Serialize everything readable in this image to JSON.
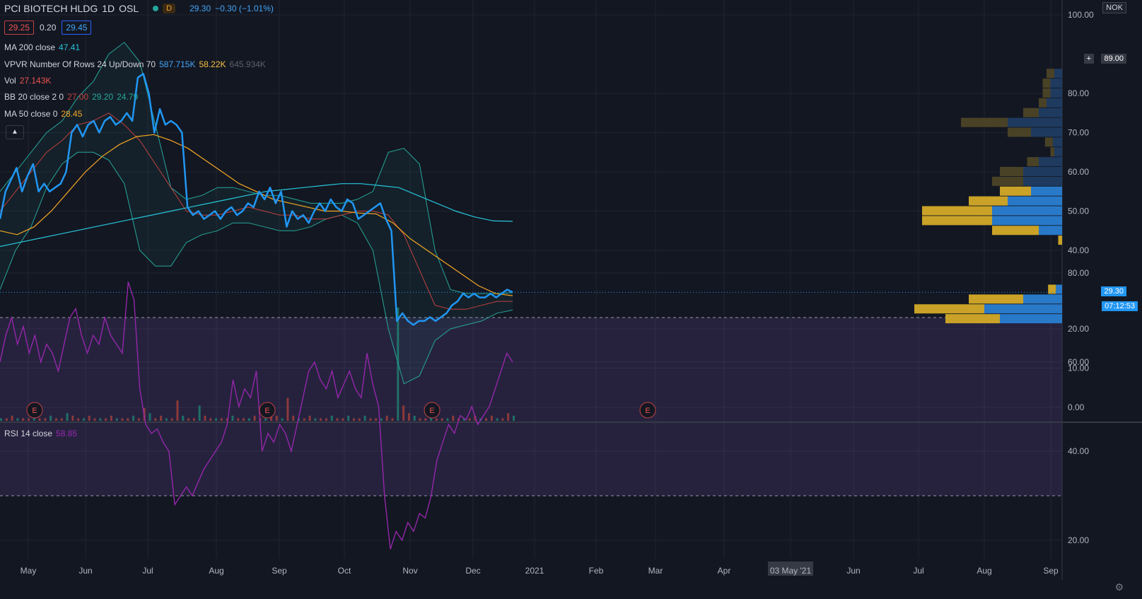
{
  "header": {
    "symbol": "PCI BIOTECH HLDG",
    "interval": "1D",
    "exchange": "OSL",
    "market_status_badge": "D",
    "last_price": "29.30",
    "change": "−0.30 (−1.01%)"
  },
  "quotes": {
    "bid": "29.25",
    "spread": "0.20",
    "ask": "29.45"
  },
  "legend": [
    {
      "label": "MA 200 close",
      "values": [
        "47.41"
      ],
      "colors": [
        "#26c6da"
      ]
    },
    {
      "label": "VPVR Number Of Rows 24 Up/Down 70",
      "values": [
        "587.715K",
        "58.22K",
        "645.934K"
      ],
      "colors": [
        "#42a5f5",
        "#f5c042",
        "#5d606b"
      ]
    },
    {
      "label": "Vol",
      "values": [
        "27.143K"
      ],
      "colors": [
        "#ef5350"
      ]
    },
    {
      "label": "BB 20 close 2 0",
      "values": [
        "27.00",
        "29.20",
        "24.79"
      ],
      "colors": [
        "#c2413f",
        "#26a69a",
        "#26a69a"
      ]
    },
    {
      "label": "MA 50 close 0",
      "values": [
        "28.45"
      ],
      "colors": [
        "#f5a623"
      ]
    }
  ],
  "rsi_legend": {
    "label": "RSI 14 close",
    "value": "58.85"
  },
  "currency": "NOK",
  "price_tags": {
    "crosshair": "89.00",
    "last": "29.30",
    "countdown": "07:12:53"
  },
  "earnings_marker": "E",
  "colors": {
    "background": "#131722",
    "price": "#2196f3",
    "ma200": "#26c6da",
    "ma50": "#f5a623",
    "bb_basis": "#c2413f",
    "bb_band": "#26a69a",
    "rsi": "#9c27b0",
    "up": "#26a69a",
    "down": "#ef5350"
  },
  "chart_data": [
    {
      "type": "line",
      "title": "PCI BIOTECH HLDG · 1D · OSL",
      "x_ticks": [
        "May",
        "Jun",
        "Jul",
        "Aug",
        "Sep",
        "Oct",
        "Nov",
        "Dec",
        "2021",
        "Feb",
        "Mar",
        "Apr",
        "03 May '21",
        "Jun",
        "Jul",
        "Aug",
        "Sep"
      ],
      "y_ticks": [
        "100.00",
        "80.00",
        "70.00",
        "60.00",
        "50.00",
        "40.00",
        "20.00",
        "10.00",
        "0.00"
      ],
      "ylim": [
        0,
        100
      ],
      "grid": true,
      "series": [
        {
          "name": "Price",
          "values": [
            48,
            55,
            58,
            61,
            55,
            59,
            62,
            55,
            57,
            55,
            56,
            57,
            60,
            70,
            72,
            69,
            72,
            73,
            70,
            73,
            74,
            72,
            73,
            75,
            73,
            84,
            85,
            80,
            70,
            76,
            72,
            73,
            72,
            70,
            51,
            49,
            50,
            48,
            49,
            50,
            48,
            50,
            51,
            49,
            50,
            52,
            51,
            55,
            53,
            56,
            52,
            55,
            46,
            50,
            48,
            49,
            47,
            50,
            52,
            50,
            53,
            51,
            50,
            53,
            52,
            48,
            49,
            50,
            51,
            52,
            48,
            45,
            22,
            24,
            22,
            21,
            22,
            22,
            23,
            22,
            23,
            24,
            26,
            27,
            29,
            28,
            29,
            28,
            28,
            29,
            28,
            29,
            30,
            29.3
          ]
        },
        {
          "name": "MA 200 close",
          "values": [
            41,
            42,
            43,
            44,
            45,
            46,
            47,
            48,
            49,
            50,
            51,
            52,
            53,
            54,
            55,
            55.5,
            56,
            56.5,
            57,
            57,
            56.5,
            56,
            54,
            52,
            50,
            48.5,
            47.5,
            47.41
          ]
        },
        {
          "name": "MA 50 close",
          "values": [
            45,
            44,
            46,
            50,
            55,
            60,
            64,
            67,
            69,
            69.5,
            68,
            66,
            63,
            60,
            57,
            55,
            53,
            52,
            51,
            50,
            50,
            49.5,
            49.3,
            47,
            43,
            40,
            37,
            34,
            31,
            29,
            28.45
          ]
        },
        {
          "name": "BB basis",
          "values": [
            50,
            55,
            60,
            65,
            68,
            72,
            73,
            75,
            72,
            68,
            62,
            56,
            50,
            49,
            49,
            50,
            51,
            50,
            49,
            49,
            48,
            48,
            49,
            50,
            50,
            49,
            44,
            35,
            26,
            25,
            25,
            26,
            27,
            27
          ]
        },
        {
          "name": "BB upper",
          "values": [
            55,
            60,
            65,
            70,
            73,
            79,
            83,
            90,
            93,
            88,
            72,
            56,
            53,
            54,
            56,
            56,
            55,
            54,
            54,
            53,
            52,
            52,
            52,
            53,
            55,
            65,
            66,
            62,
            40,
            30,
            29,
            29,
            29,
            29.2
          ]
        },
        {
          "name": "BB lower",
          "values": [
            30,
            40,
            46,
            56,
            62,
            65,
            65,
            63,
            57,
            40,
            36,
            36,
            42,
            44,
            45,
            47,
            47,
            46,
            45,
            45,
            46,
            48,
            49,
            47,
            40,
            20,
            6,
            8,
            17,
            20,
            21,
            22,
            24,
            24.79
          ]
        }
      ]
    },
    {
      "type": "bar",
      "title": "VPVR Number Of Rows 24 Up/Down 70",
      "price_levels": [
        85,
        82.5,
        80,
        77.5,
        75,
        72.5,
        70,
        67.5,
        65,
        62.5,
        60,
        57.5,
        55,
        52.5,
        50,
        47.5,
        45,
        42.5,
        40,
        30,
        27.5,
        25,
        22.5,
        20
      ],
      "series": [
        {
          "name": "Up",
          "values": [
            1,
            1,
            1,
            1,
            2,
            6,
            3,
            1,
            0.5,
            1.5,
            3,
            4,
            4,
            5,
            9,
            9,
            6,
            0.5,
            0,
            1,
            7,
            9,
            7,
            0
          ]
        },
        {
          "name": "Down",
          "values": [
            1,
            1.5,
            1.5,
            2,
            3,
            7,
            4,
            1.2,
            1,
            3,
            5,
            5,
            4,
            7,
            9,
            9,
            3,
            0,
            0,
            0.8,
            5,
            10,
            8,
            0
          ]
        }
      ]
    },
    {
      "type": "bar",
      "title": "Vol",
      "values": [
        1,
        1,
        2,
        1,
        1,
        1,
        2,
        1,
        1,
        2,
        1,
        1,
        3,
        2,
        1,
        1,
        2,
        1,
        1,
        1,
        2,
        1,
        1,
        1,
        2,
        1,
        5,
        3,
        1,
        2,
        1,
        1,
        8,
        2,
        1,
        1,
        6,
        2,
        1,
        1,
        1,
        1,
        2,
        1,
        1,
        1,
        2,
        1,
        1,
        3,
        2,
        1,
        9,
        2,
        1,
        1,
        2,
        1,
        1,
        1,
        2,
        1,
        1,
        2,
        1,
        1,
        2,
        1,
        1,
        1,
        2,
        1,
        45,
        6,
        3,
        2,
        1,
        1,
        2,
        1,
        1,
        1,
        2,
        1,
        1,
        1,
        2,
        1,
        1,
        2,
        1,
        1,
        3,
        2
      ]
    },
    {
      "type": "line",
      "title": "RSI 14 close",
      "y_ticks": [
        "80.00",
        "60.00",
        "40.00",
        "20.00"
      ],
      "ylim": [
        10,
        85
      ],
      "bands": [
        30,
        70
      ],
      "series": [
        {
          "name": "RSI 14 close",
          "values": [
            60,
            66,
            70,
            64,
            68,
            62,
            66,
            60,
            64,
            62,
            58,
            64,
            70,
            72,
            66,
            62,
            66,
            64,
            70,
            66,
            64,
            62,
            78,
            74,
            54,
            46,
            44,
            45,
            42,
            40,
            28,
            30,
            32,
            30,
            33,
            36,
            38,
            40,
            42,
            46,
            56,
            50,
            54,
            52,
            58,
            40,
            44,
            42,
            46,
            44,
            40,
            46,
            52,
            58,
            60,
            56,
            54,
            58,
            52,
            55,
            58,
            54,
            52,
            62,
            55,
            50,
            30,
            18,
            22,
            20,
            24,
            22,
            26,
            25,
            30,
            38,
            42,
            46,
            44,
            48,
            47,
            50,
            46,
            48,
            50,
            54,
            58,
            62,
            60
          ]
        }
      ]
    }
  ]
}
